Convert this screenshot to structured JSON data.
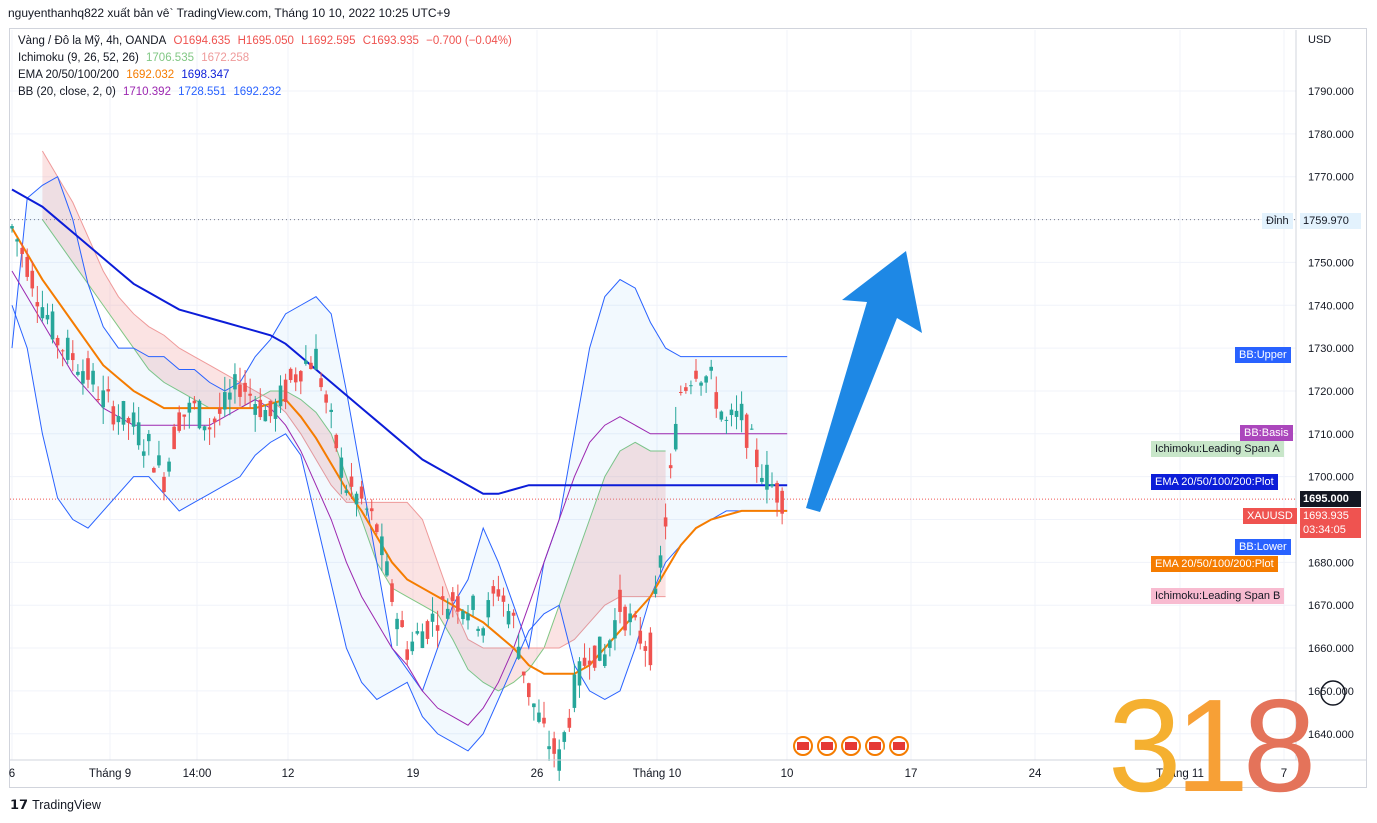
{
  "header": {
    "text": "nguyenthanhq822 xuất bản vê` TradingView.com, Tháng 10 10, 2022 10:25 UTC+9"
  },
  "legend": {
    "symbol": {
      "name": "Vàng / Đô la Mỹ, 4h, OANDA",
      "o": "O1694.635",
      "h": "H1695.050",
      "l": "L1692.595",
      "c": "C1693.935",
      "chg": "−0.700 (−0.04%)"
    },
    "ichimoku": {
      "name": "Ichimoku (9, 26, 52, 26)",
      "v1": "1706.535",
      "v2": "1672.258"
    },
    "ema": {
      "name": "EMA 20/50/100/200",
      "v1": "1692.032",
      "v2": "1698.347"
    },
    "bb": {
      "name": "BB (20, close, 2, 0)",
      "v1": "1710.392",
      "v2": "1728.551",
      "v3": "1692.232"
    }
  },
  "colors": {
    "up": "#26a69a",
    "down": "#ef5350",
    "ema_fast": "#f57c00",
    "ema_slow": "#0c1dd8",
    "bb": "#2962ff",
    "bb_basis": "#9c27b0",
    "span_a": "#81c784",
    "span_b": "#ef9a9a",
    "arrow": "#1e88e5"
  },
  "price_axis": {
    "currency": "USD",
    "ticks": [
      "1790.000",
      "1780.000",
      "1770.000",
      "1760.000",
      "1750.000",
      "1740.000",
      "1730.000",
      "1720.000",
      "1710.000",
      "1700.000",
      "1690.000",
      "1680.000",
      "1670.000",
      "1660.000",
      "1650.000",
      "1640.000"
    ]
  },
  "time_axis": {
    "labels": [
      "6",
      "Tháng 9",
      "14:00",
      "12",
      "19",
      "26",
      "Tháng 10",
      "10",
      "17",
      "24",
      "Tháng 11",
      "7"
    ]
  },
  "badges": {
    "high_label": "Đỉnh",
    "high_value": "1759.970",
    "bb_upper": "BB:Upper",
    "bb_basis": "BB:Basis",
    "span_a": "Ichimoku:Leading Span A",
    "ema_plot": "EMA 20/50/100/200:Plot",
    "xauusd": "XAUUSD",
    "bb_lower": "BB:Lower",
    "ema_plot2": "EMA 20/50/100/200:Plot",
    "span_b": "Ichimoku:Leading Span B",
    "price_current": "1695.000",
    "price_last": "1693.935",
    "countdown": "03:34:05"
  },
  "watermark": {
    "d1": "3",
    "d2": "1",
    "d3": "8"
  },
  "footer": {
    "brand": "TradingView"
  },
  "chart_data": {
    "type": "candlestick",
    "symbol": "XAUUSD",
    "timeframe": "4h",
    "ylim": [
      1635,
      1800
    ],
    "x": [
      "6",
      "Tháng 9",
      "14:00",
      "12",
      "19",
      "26",
      "Tháng 10",
      "10",
      "17",
      "24",
      "Tháng 11",
      "7"
    ],
    "close_path": [
      1758,
      1750,
      1740,
      1732,
      1728,
      1724,
      1718,
      1715,
      1712,
      1707,
      1700,
      1714,
      1716,
      1712,
      1716,
      1722,
      1718,
      1714,
      1720,
      1726,
      1728,
      1712,
      1698,
      1694,
      1688,
      1672,
      1660,
      1664,
      1668,
      1672,
      1670,
      1666,
      1674,
      1666,
      1650,
      1640,
      1634,
      1650,
      1660,
      1658,
      1670,
      1664,
      1660,
      1690,
      1720,
      1726,
      1722,
      1712,
      1714,
      1704,
      1698,
      1694
    ],
    "ema_fast": [
      1758,
      1752,
      1746,
      1741,
      1736,
      1731,
      1726,
      1723,
      1720,
      1718,
      1716,
      1716,
      1716,
      1716,
      1716,
      1716,
      1716,
      1717,
      1718,
      1714,
      1709,
      1703,
      1697,
      1692,
      1686,
      1680,
      1676,
      1674,
      1672,
      1670,
      1668,
      1666,
      1663,
      1660,
      1656,
      1654,
      1654,
      1654,
      1656,
      1660,
      1664,
      1668,
      1672,
      1678,
      1684,
      1688,
      1690,
      1691,
      1692,
      1692,
      1692,
      1692
    ],
    "ema_slow": [
      1767,
      1765,
      1763,
      1760,
      1757,
      1754,
      1751,
      1748,
      1745,
      1743,
      1741,
      1739,
      1738,
      1737,
      1736,
      1735,
      1734,
      1733,
      1731,
      1728,
      1725,
      1722,
      1719,
      1716,
      1713,
      1710,
      1707,
      1704,
      1702,
      1700,
      1698,
      1696,
      1696,
      1697,
      1698,
      1698,
      1698,
      1698,
      1698,
      1698,
      1698,
      1698,
      1698,
      1698,
      1698,
      1698,
      1698,
      1698,
      1698,
      1698,
      1698,
      1698
    ],
    "bb_upper": [
      1730,
      1765,
      1768,
      1770,
      1760,
      1745,
      1735,
      1730,
      1730,
      1728,
      1728,
      1725,
      1725,
      1722,
      1720,
      1722,
      1728,
      1732,
      1738,
      1740,
      1742,
      1738,
      1720,
      1700,
      1680,
      1660,
      1655,
      1650,
      1660,
      1670,
      1676,
      1688,
      1680,
      1670,
      1660,
      1680,
      1690,
      1710,
      1730,
      1742,
      1746,
      1744,
      1736,
      1730,
      1728,
      1728,
      1728,
      1728,
      1728,
      1728,
      1728,
      1728
    ],
    "bb_lower": [
      1740,
      1730,
      1710,
      1695,
      1690,
      1688,
      1692,
      1696,
      1700,
      1700,
      1696,
      1692,
      1694,
      1696,
      1698,
      1700,
      1705,
      1708,
      1710,
      1705,
      1690,
      1675,
      1660,
      1652,
      1648,
      1650,
      1652,
      1644,
      1640,
      1638,
      1636,
      1640,
      1648,
      1656,
      1664,
      1668,
      1670,
      1656,
      1650,
      1648,
      1650,
      1660,
      1672,
      1680,
      1684,
      1688,
      1690,
      1692,
      1692,
      1692,
      1692,
      1692
    ],
    "bb_basis": [
      1748,
      1742,
      1736,
      1730,
      1724,
      1720,
      1716,
      1714,
      1712,
      1712,
      1712,
      1712,
      1712,
      1712,
      1714,
      1716,
      1718,
      1716,
      1712,
      1706,
      1698,
      1690,
      1680,
      1672,
      1666,
      1660,
      1656,
      1650,
      1646,
      1644,
      1642,
      1646,
      1652,
      1660,
      1670,
      1680,
      1690,
      1700,
      1708,
      1712,
      1714,
      1712,
      1710,
      1710,
      1710,
      1710,
      1710,
      1710,
      1710,
      1710,
      1710,
      1710
    ],
    "span_a": [
      1760,
      1755,
      1750,
      1745,
      1740,
      1735,
      1730,
      1725,
      1722,
      1720,
      1718,
      1716,
      1716,
      1716,
      1718,
      1720,
      1720,
      1718,
      1715,
      1710,
      1700,
      1690,
      1680,
      1674,
      1672,
      1670,
      1668,
      1662,
      1655,
      1652,
      1650,
      1652,
      1655,
      1660,
      1670,
      1680,
      1690,
      1700,
      1706,
      1708,
      1706,
      1706
    ],
    "span_b": [
      1776,
      1770,
      1764,
      1756,
      1748,
      1742,
      1738,
      1735,
      1733,
      1730,
      1728,
      1726,
      1724,
      1722,
      1720,
      1718,
      1715,
      1710,
      1704,
      1698,
      1694,
      1694,
      1694,
      1694,
      1694,
      1690,
      1680,
      1670,
      1662,
      1660,
      1660,
      1660,
      1660,
      1660,
      1660,
      1662,
      1666,
      1670,
      1672,
      1672,
      1672,
      1672
    ],
    "last_price": 1693.935,
    "current_price": 1695.0,
    "high": 1759.97
  }
}
